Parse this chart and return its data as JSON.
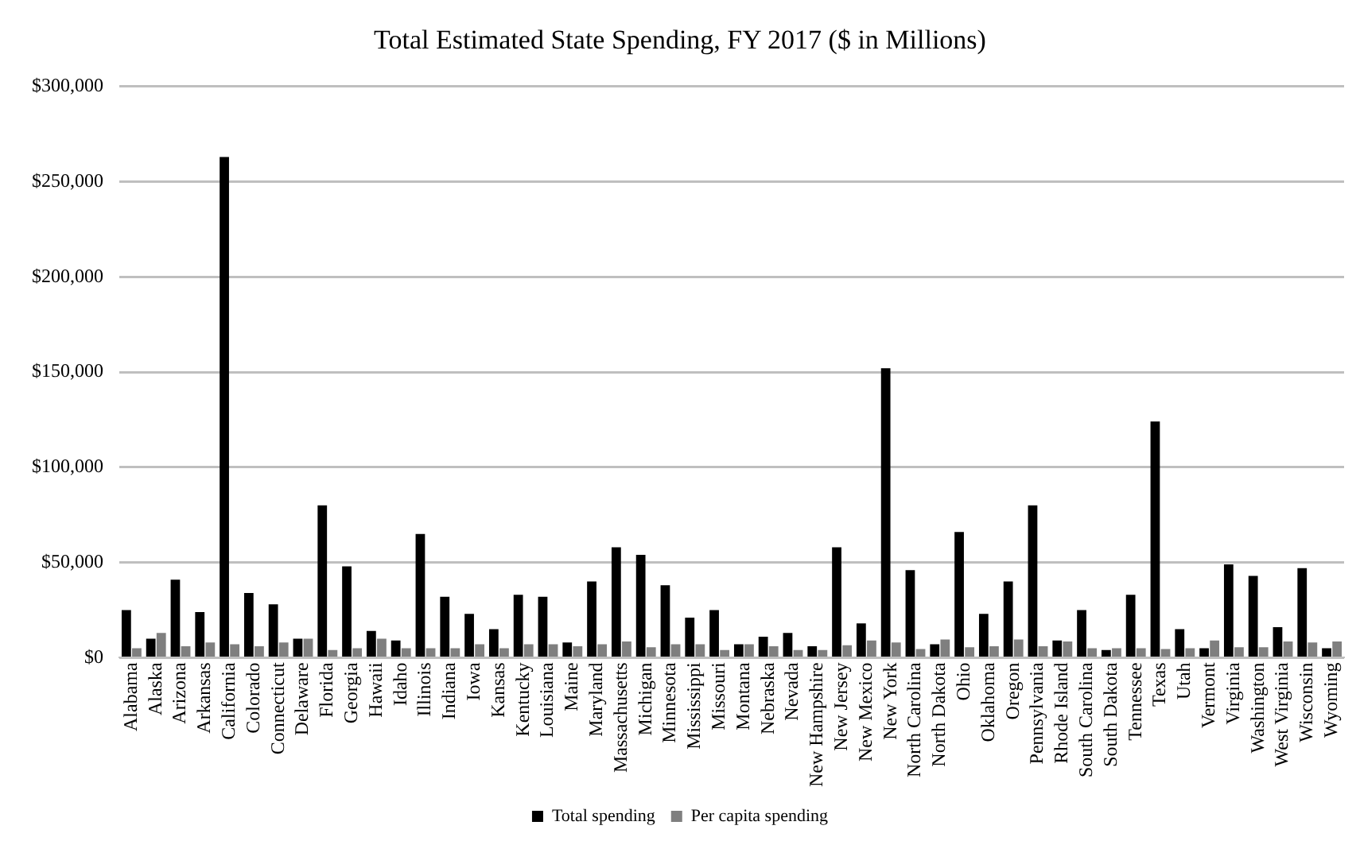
{
  "chart_data": {
    "type": "bar",
    "title": "Total Estimated State Spending, FY 2017 ($ in Millions)",
    "categories": [
      "Alabama",
      "Alaska",
      "Arizona",
      "Arkansas",
      "California",
      "Colorado",
      "Connecticut",
      "Delaware",
      "Florida",
      "Georgia",
      "Hawaii",
      "Idaho",
      "Illinois",
      "Indiana",
      "Iowa",
      "Kansas",
      "Kentucky",
      "Louisiana",
      "Maine",
      "Maryland",
      "Massachusetts",
      "Michigan",
      "Minnesota",
      "Mississippi",
      "Missouri",
      "Montana",
      "Nebraska",
      "Nevada",
      "New Hampshire",
      "New Jersey",
      "New Mexico",
      "New York",
      "North Carolina",
      "North Dakota",
      "Ohio",
      "Oklahoma",
      "Oregon",
      "Pennsylvania",
      "Rhode Island",
      "South Carolina",
      "South Dakota",
      "Tennessee",
      "Texas",
      "Utah",
      "Vermont",
      "Virginia",
      "Washington",
      "West Virginia",
      "Wisconsin",
      "Wyoming"
    ],
    "series": [
      {
        "name": "Total spending",
        "color": "#000000",
        "values": [
          25000,
          10000,
          41000,
          24000,
          263000,
          34000,
          28000,
          10000,
          80000,
          48000,
          14000,
          9000,
          65000,
          32000,
          23000,
          15000,
          33000,
          32000,
          8000,
          40000,
          58000,
          54000,
          38000,
          21000,
          25000,
          7000,
          11000,
          13000,
          6000,
          58000,
          18000,
          152000,
          46000,
          7000,
          66000,
          23000,
          40000,
          80000,
          9000,
          25000,
          4000,
          33000,
          124000,
          15000,
          5000,
          49000,
          43000,
          16000,
          47000,
          5000
        ]
      },
      {
        "name": "Per capita spending",
        "color": "#7f7f7f",
        "values": [
          5000,
          13000,
          6000,
          8000,
          7000,
          6000,
          8000,
          10000,
          4000,
          5000,
          10000,
          5000,
          5000,
          5000,
          7000,
          5000,
          7000,
          7000,
          6000,
          7000,
          8500,
          5500,
          7000,
          7000,
          4000,
          7000,
          6000,
          4000,
          4000,
          6500,
          9000,
          8000,
          4500,
          9500,
          5500,
          6000,
          9500,
          6000,
          8500,
          5000,
          5000,
          5000,
          4500,
          5000,
          9000,
          5500,
          5500,
          8500,
          8000,
          8500
        ]
      }
    ],
    "ylim": [
      0,
      300000
    ],
    "yticks": [
      {
        "value": 0,
        "label": "$0"
      },
      {
        "value": 50000,
        "label": "$50,000"
      },
      {
        "value": 100000,
        "label": "$100,000"
      },
      {
        "value": 150000,
        "label": "$150,000"
      },
      {
        "value": 200000,
        "label": "$200,000"
      },
      {
        "value": 250000,
        "label": "$250,000"
      },
      {
        "value": 300000,
        "label": "$300,000"
      }
    ],
    "grid": "y",
    "legend": "bottom"
  }
}
